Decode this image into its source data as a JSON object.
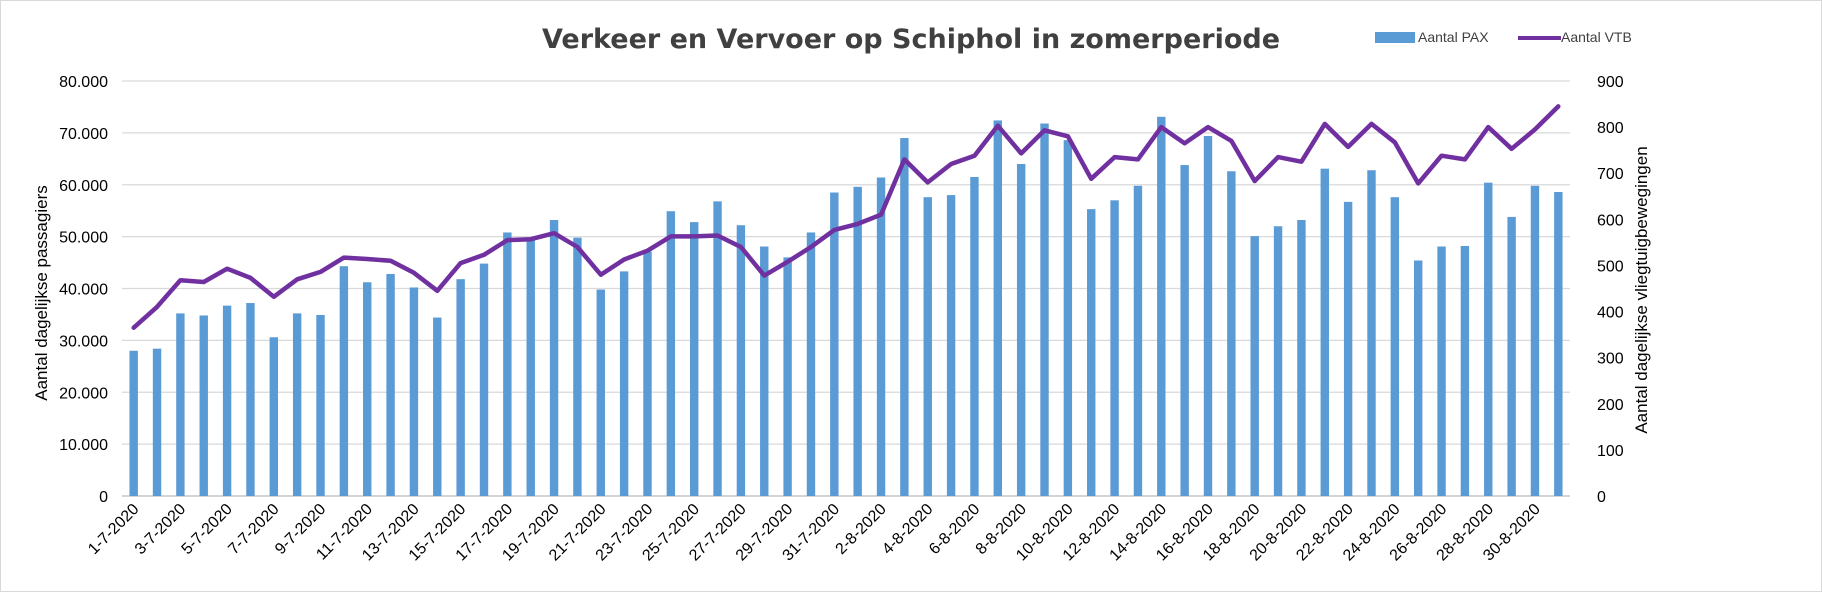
{
  "chart_data": {
    "type": "bar",
    "title": "Verkeer en Vervoer op Schiphol in zomerperiode",
    "ylabel": "Aantal dagelijkse passagiers",
    "y2label": "Aantal dagelijkse vliegtuigbewegingen",
    "ylim": [
      0,
      80000
    ],
    "y2lim": [
      0,
      900
    ],
    "yticks": [
      "0",
      "10.000",
      "20.000",
      "30.000",
      "40.000",
      "50.000",
      "60.000",
      "70.000",
      "80.000"
    ],
    "y2ticks": [
      "0",
      "100",
      "200",
      "300",
      "400",
      "500",
      "600",
      "700",
      "800",
      "900"
    ],
    "legend_position": "top-right",
    "grid": true,
    "colors": {
      "bars": "#5B9BD5",
      "line": "#7030A0",
      "grid": "#d9d9d9"
    },
    "categories": [
      "1-7-2020",
      "2-7-2020",
      "3-7-2020",
      "4-7-2020",
      "5-7-2020",
      "6-7-2020",
      "7-7-2020",
      "8-7-2020",
      "9-7-2020",
      "10-7-2020",
      "11-7-2020",
      "12-7-2020",
      "13-7-2020",
      "14-7-2020",
      "15-7-2020",
      "16-7-2020",
      "17-7-2020",
      "18-7-2020",
      "19-7-2020",
      "20-7-2020",
      "21-7-2020",
      "22-7-2020",
      "23-7-2020",
      "24-7-2020",
      "25-7-2020",
      "26-7-2020",
      "27-7-2020",
      "28-7-2020",
      "29-7-2020",
      "30-7-2020",
      "31-7-2020",
      "1-8-2020",
      "2-8-2020",
      "3-8-2020",
      "4-8-2020",
      "5-8-2020",
      "6-8-2020",
      "7-8-2020",
      "8-8-2020",
      "9-8-2020",
      "10-8-2020",
      "11-8-2020",
      "12-8-2020",
      "13-8-2020",
      "14-8-2020",
      "15-8-2020",
      "16-8-2020",
      "17-8-2020",
      "18-8-2020",
      "19-8-2020",
      "20-8-2020",
      "21-8-2020",
      "22-8-2020",
      "23-8-2020",
      "24-8-2020",
      "25-8-2020",
      "26-8-2020",
      "27-8-2020",
      "28-8-2020",
      "29-8-2020",
      "30-8-2020",
      "31-8-2020"
    ],
    "x_tick_labels": [
      "1-7-2020",
      "3-7-2020",
      "5-7-2020",
      "7-7-2020",
      "9-7-2020",
      "11-7-2020",
      "13-7-2020",
      "15-7-2020",
      "17-7-2020",
      "19-7-2020",
      "21-7-2020",
      "23-7-2020",
      "25-7-2020",
      "27-7-2020",
      "29-7-2020",
      "31-7-2020",
      "2-8-2020",
      "4-8-2020",
      "6-8-2020",
      "8-8-2020",
      "10-8-2020",
      "12-8-2020",
      "14-8-2020",
      "16-8-2020",
      "18-8-2020",
      "20-8-2020",
      "22-8-2020",
      "24-8-2020",
      "26-8-2020",
      "28-8-2020",
      "30-8-2020"
    ],
    "series": [
      {
        "name": "Aantal PAX",
        "type": "bar",
        "axis": "left",
        "values": [
          28000,
          28400,
          35200,
          34800,
          36700,
          37200,
          30600,
          35200,
          34900,
          44300,
          41200,
          42800,
          40200,
          34400,
          41800,
          44800,
          50800,
          49800,
          53200,
          49800,
          39800,
          43300,
          47100,
          54900,
          52800,
          56800,
          52200,
          48100,
          46000,
          50800,
          58500,
          59600,
          61400,
          69000,
          57600,
          58000,
          61500,
          72400,
          64000,
          71800,
          68600,
          55300,
          57000,
          59800,
          73100,
          63800,
          69400,
          62600,
          50100,
          52000,
          53200,
          63100,
          56700,
          62800,
          57600,
          45400,
          48100,
          48200,
          60400,
          53800,
          59800,
          58600
        ]
      },
      {
        "name": "Aantal VTB",
        "type": "line",
        "axis": "right",
        "values": [
          365,
          410,
          468,
          464,
          493,
          473,
          432,
          470,
          486,
          517,
          514,
          510,
          484,
          445,
          505,
          523,
          555,
          557,
          570,
          540,
          480,
          513,
          532,
          563,
          563,
          565,
          540,
          478,
          508,
          540,
          577,
          590,
          610,
          730,
          680,
          720,
          738,
          803,
          743,
          793,
          780,
          688,
          735,
          730,
          800,
          765,
          800,
          770,
          683,
          735,
          725,
          807,
          757,
          807,
          767,
          678,
          738,
          730,
          800,
          753,
          795,
          845
        ]
      }
    ]
  }
}
